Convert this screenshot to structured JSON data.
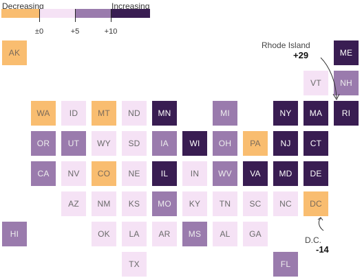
{
  "legend": {
    "decreasing_label": "Decreasing",
    "increasing_label": "Increasing",
    "ticks": [
      "±0",
      "+5",
      "+10"
    ],
    "colors": {
      "decreasing": "#f9bd70",
      "increase_0_5": "#f5e2f5",
      "increase_5_10": "#9a7bad",
      "increase_over_10": "#391d52"
    }
  },
  "annotations": {
    "rhode_island": {
      "name": "Rhode Island",
      "value": "+29"
    },
    "dc": {
      "name": "D.C.",
      "value": "-14"
    }
  },
  "states": [
    {
      "abbr": "AK",
      "category": "decreasing"
    },
    {
      "abbr": "ME",
      "category": "increase_over_10"
    },
    {
      "abbr": "VT",
      "category": "increase_0_5"
    },
    {
      "abbr": "NH",
      "category": "increase_5_10"
    },
    {
      "abbr": "WA",
      "category": "decreasing"
    },
    {
      "abbr": "ID",
      "category": "increase_0_5"
    },
    {
      "abbr": "MT",
      "category": "decreasing"
    },
    {
      "abbr": "ND",
      "category": "increase_0_5"
    },
    {
      "abbr": "MN",
      "category": "increase_over_10"
    },
    {
      "abbr": "MI",
      "category": "increase_5_10"
    },
    {
      "abbr": "NY",
      "category": "increase_over_10"
    },
    {
      "abbr": "MA",
      "category": "increase_over_10"
    },
    {
      "abbr": "RI",
      "category": "increase_over_10"
    },
    {
      "abbr": "OR",
      "category": "increase_5_10"
    },
    {
      "abbr": "UT",
      "category": "increase_5_10"
    },
    {
      "abbr": "WY",
      "category": "increase_0_5"
    },
    {
      "abbr": "SD",
      "category": "increase_0_5"
    },
    {
      "abbr": "IA",
      "category": "increase_5_10"
    },
    {
      "abbr": "WI",
      "category": "increase_over_10"
    },
    {
      "abbr": "OH",
      "category": "increase_5_10"
    },
    {
      "abbr": "PA",
      "category": "decreasing"
    },
    {
      "abbr": "NJ",
      "category": "increase_over_10"
    },
    {
      "abbr": "CT",
      "category": "increase_over_10"
    },
    {
      "abbr": "CA",
      "category": "increase_5_10"
    },
    {
      "abbr": "NV",
      "category": "increase_0_5"
    },
    {
      "abbr": "CO",
      "category": "decreasing"
    },
    {
      "abbr": "NE",
      "category": "increase_0_5"
    },
    {
      "abbr": "IL",
      "category": "increase_over_10"
    },
    {
      "abbr": "IN",
      "category": "increase_0_5"
    },
    {
      "abbr": "WV",
      "category": "increase_5_10"
    },
    {
      "abbr": "VA",
      "category": "increase_over_10"
    },
    {
      "abbr": "MD",
      "category": "increase_over_10"
    },
    {
      "abbr": "DE",
      "category": "increase_over_10"
    },
    {
      "abbr": "AZ",
      "category": "increase_0_5"
    },
    {
      "abbr": "NM",
      "category": "increase_0_5"
    },
    {
      "abbr": "KS",
      "category": "increase_0_5"
    },
    {
      "abbr": "MO",
      "category": "increase_5_10"
    },
    {
      "abbr": "KY",
      "category": "increase_0_5"
    },
    {
      "abbr": "TN",
      "category": "increase_0_5"
    },
    {
      "abbr": "SC",
      "category": "increase_0_5"
    },
    {
      "abbr": "NC",
      "category": "increase_0_5"
    },
    {
      "abbr": "DC",
      "category": "decreasing"
    },
    {
      "abbr": "HI",
      "category": "increase_5_10"
    },
    {
      "abbr": "OK",
      "category": "increase_0_5"
    },
    {
      "abbr": "LA",
      "category": "increase_0_5"
    },
    {
      "abbr": "AR",
      "category": "increase_0_5"
    },
    {
      "abbr": "MS",
      "category": "increase_5_10"
    },
    {
      "abbr": "AL",
      "category": "increase_0_5"
    },
    {
      "abbr": "GA",
      "category": "increase_0_5"
    },
    {
      "abbr": "TX",
      "category": "increase_0_5"
    },
    {
      "abbr": "FL",
      "category": "increase_5_10"
    }
  ]
}
